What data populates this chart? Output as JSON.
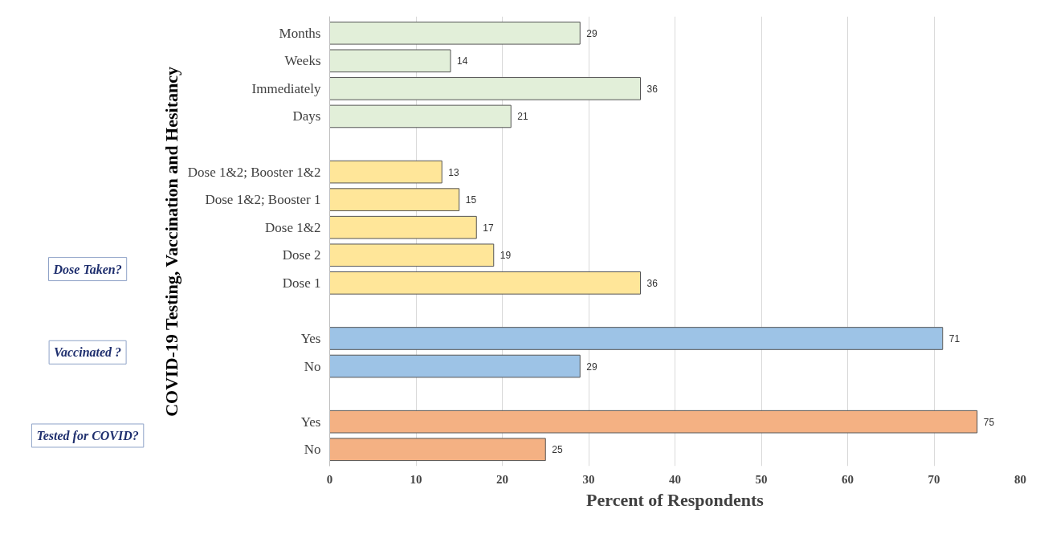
{
  "chart_data": {
    "type": "bar",
    "orientation": "horizontal",
    "xlabel": "Percent of Respondents",
    "ylabel": "COVID-19 Testing, Vaccination and Hesitancy",
    "categories": [
      "Months",
      "Weeks",
      "Immediately",
      "Days",
      null,
      "Dose 1&2; Booster 1&2",
      "Dose 1&2; Booster 1",
      "Dose 1&2",
      "Dose 2",
      "Dose 1",
      null,
      "Yes",
      "No",
      null,
      "Yes",
      "No"
    ],
    "values": [
      29,
      14,
      36,
      21,
      null,
      13,
      15,
      17,
      19,
      36,
      null,
      71,
      29,
      null,
      75,
      25
    ],
    "colors": [
      "#e2efd9",
      "#e2efd9",
      "#e2efd9",
      "#e2efd9",
      "#ffffff",
      "#ffe699",
      "#ffe699",
      "#ffe699",
      "#ffe699",
      "#ffe699",
      "#ffffff",
      "#9dc3e6",
      "#9dc3e6",
      "#ffffff",
      "#f4b183",
      "#f4b183"
    ],
    "data_labels": true,
    "xlim": [
      0,
      80
    ],
    "xticks": [
      0,
      10,
      20,
      30,
      40,
      50,
      60,
      70,
      80
    ],
    "grid": "x",
    "annotations": [
      "Dose Taken?",
      "Vaccinated ?",
      "Tested for COVID?"
    ]
  }
}
